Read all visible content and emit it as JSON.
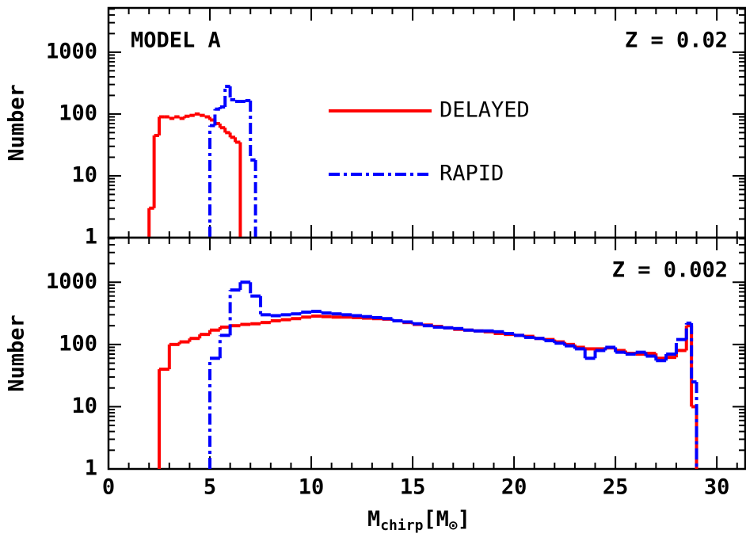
{
  "chart_data": [
    {
      "type": "histogram",
      "ylabel": "Number",
      "log": true,
      "xlim": [
        0,
        31.4
      ],
      "xticks": [
        0,
        5,
        10,
        15,
        20,
        25,
        30
      ],
      "ylim": [
        1,
        5200
      ],
      "yticks": [
        1,
        10,
        100,
        1000
      ],
      "legend": "upper center",
      "annotations": [
        {
          "text": "MODEL A",
          "corner": "upper left"
        },
        {
          "text": "Z = 0.02",
          "corner": "upper right"
        }
      ],
      "series": [
        {
          "name": "DELAYED",
          "color": "#ff0000",
          "linestyle": "solid",
          "bins": [
            2.0,
            2.25,
            2.5,
            2.75,
            3.0,
            3.25,
            3.5,
            3.75,
            4.0,
            4.25,
            4.5,
            4.75,
            5.0,
            5.25,
            5.5,
            5.75,
            6.0,
            6.25,
            6.5
          ],
          "values": [
            3,
            45,
            90,
            90,
            85,
            90,
            85,
            92,
            95,
            100,
            95,
            90,
            80,
            70,
            60,
            50,
            42,
            35
          ]
        },
        {
          "name": "RAPID",
          "color": "#0000ff",
          "linestyle": "dashdot",
          "bins": [
            5.0,
            5.25,
            5.5,
            5.75,
            6.0,
            6.25,
            6.5,
            6.75,
            7.0,
            7.25
          ],
          "values": [
            65,
            120,
            130,
            280,
            170,
            160,
            160,
            165,
            18
          ]
        }
      ]
    },
    {
      "type": "histogram",
      "ylabel": "Number",
      "log": true,
      "xlabel": [
        {
          "text": "M"
        },
        {
          "text": "chirp",
          "sub": true
        },
        {
          "text": "[M"
        },
        {
          "text": "⊙",
          "sub": true
        },
        {
          "text": "]"
        }
      ],
      "xlim": [
        0,
        31.4
      ],
      "xticks": [
        0,
        5,
        10,
        15,
        20,
        25,
        30
      ],
      "ylim": [
        1,
        5200
      ],
      "yticks": [
        1,
        10,
        100,
        1000
      ],
      "annotations": [
        {
          "text": "Z = 0.002",
          "corner": "upper right"
        }
      ],
      "series": [
        {
          "name": "DELAYED",
          "color": "#ff0000",
          "linestyle": "solid",
          "bins": [
            2.5,
            3,
            3.5,
            4,
            4.5,
            5,
            5.5,
            6,
            6.5,
            7,
            7.5,
            8,
            8.5,
            9,
            9.5,
            10,
            10.5,
            11,
            11.5,
            12,
            12.5,
            13,
            13.5,
            14,
            14.5,
            15,
            15.5,
            16,
            16.5,
            17,
            17.5,
            18,
            18.5,
            19,
            19.5,
            20,
            20.5,
            21,
            21.5,
            22,
            22.5,
            23,
            23.5,
            24,
            24.5,
            25,
            25.5,
            26,
            26.5,
            27,
            27.5,
            28,
            28.5,
            28.75,
            29
          ],
          "values": [
            40,
            100,
            110,
            125,
            145,
            170,
            190,
            200,
            210,
            215,
            225,
            240,
            250,
            260,
            275,
            285,
            280,
            275,
            275,
            270,
            265,
            260,
            255,
            240,
            225,
            210,
            205,
            195,
            185,
            175,
            170,
            165,
            160,
            150,
            145,
            140,
            135,
            125,
            120,
            110,
            100,
            90,
            85,
            85,
            88,
            80,
            72,
            70,
            72,
            60,
            62,
            80,
            200,
            10
          ]
        },
        {
          "name": "RAPID",
          "color": "#0000ff",
          "linestyle": "dashdot",
          "bins": [
            5,
            5.5,
            6,
            6.5,
            7,
            7.5,
            8,
            8.5,
            9,
            9.5,
            10,
            10.5,
            11,
            11.5,
            12,
            12.5,
            13,
            13.5,
            14,
            14.5,
            15,
            15.5,
            16,
            16.5,
            17,
            17.5,
            18,
            18.5,
            19,
            19.5,
            20,
            20.5,
            21,
            21.5,
            22,
            22.5,
            23,
            23.5,
            24,
            24.5,
            25,
            25.5,
            26,
            26.5,
            27,
            27.5,
            28,
            28.5,
            28.75,
            29
          ],
          "values": [
            60,
            140,
            750,
            1000,
            600,
            300,
            290,
            300,
            310,
            330,
            340,
            320,
            310,
            300,
            290,
            280,
            270,
            260,
            240,
            230,
            215,
            200,
            190,
            185,
            180,
            170,
            165,
            165,
            160,
            150,
            140,
            130,
            125,
            115,
            105,
            95,
            85,
            60,
            80,
            90,
            75,
            70,
            75,
            65,
            55,
            70,
            120,
            220,
            25
          ]
        }
      ]
    }
  ]
}
